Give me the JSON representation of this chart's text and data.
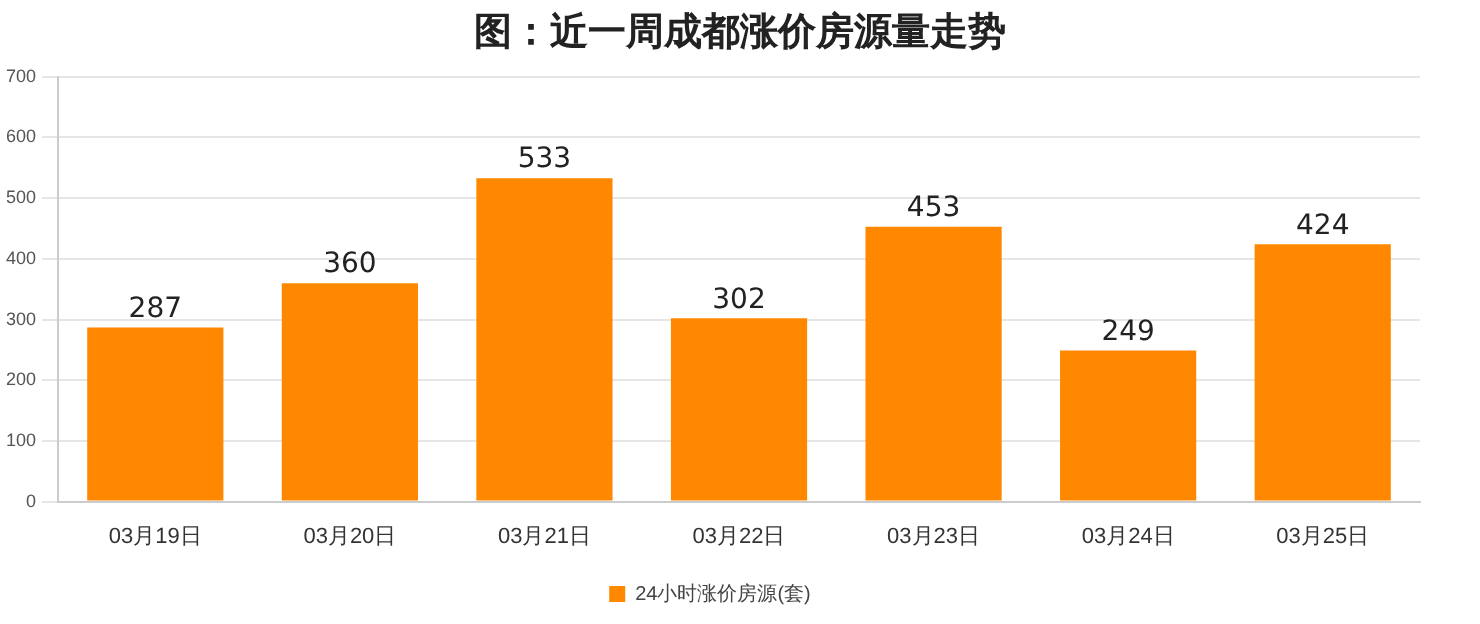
{
  "chart_data": {
    "type": "bar",
    "title": "图：近一周成都涨价房源量走势",
    "categories": [
      "03月19日",
      "03月20日",
      "03月21日",
      "03月22日",
      "03月23日",
      "03月24日",
      "03月25日"
    ],
    "series": [
      {
        "name": "24小时涨价房源(套)",
        "color": "#ff8800",
        "values": [
          287,
          360,
          533,
          302,
          453,
          249,
          424
        ]
      }
    ],
    "ylim": [
      0,
      700
    ],
    "yticks": [
      0,
      100,
      200,
      300,
      400,
      500,
      600,
      700
    ],
    "grid": "y",
    "legend": "bottom",
    "data_labels": true
  }
}
